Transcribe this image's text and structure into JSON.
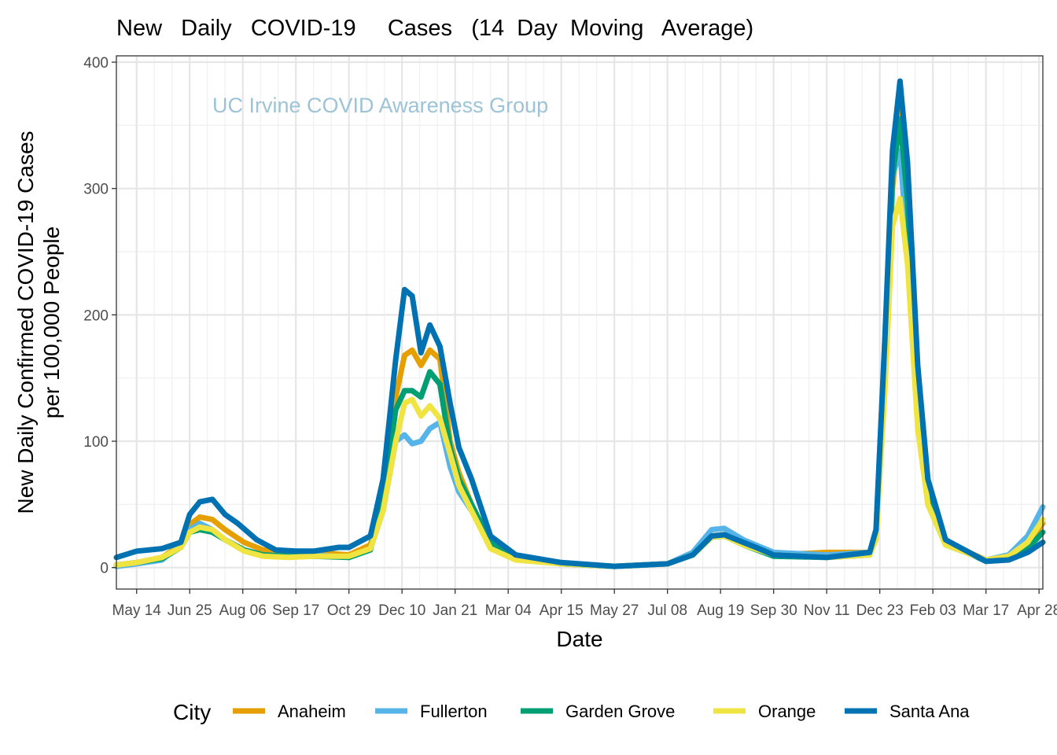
{
  "chart_data": {
    "type": "line",
    "title": "New   Daily   COVID-19     Cases   (14  Day  Moving   Average)",
    "watermark": "UC Irvine COVID Awareness Group",
    "watermark_color": "#9dc3d7",
    "xlabel": "Date",
    "ylabel_lines": [
      "New Daily Confirmed COVID-19 Cases",
      "per 100,000 People"
    ],
    "ylim": [
      -17,
      405
    ],
    "xlim": [
      -16,
      717
    ],
    "yticks": [
      0,
      100,
      200,
      300,
      400
    ],
    "xtick_labels": [
      "May 14",
      "Jun 25",
      "Aug 06",
      "Sep 17",
      "Oct 29",
      "Dec 10",
      "Jan 21",
      "Mar 04",
      "Apr 15",
      "May 27",
      "Jul 08",
      "Aug 19",
      "Sep 30",
      "Nov 11",
      "Dec 23",
      "Feb 03",
      "Mar 17",
      "Apr 28"
    ],
    "xtick_days": [
      0,
      42,
      84,
      126,
      168,
      210,
      252,
      294,
      336,
      378,
      420,
      462,
      504,
      546,
      588,
      630,
      672,
      714
    ],
    "x_unit": "days since May 14",
    "legend_title": "City",
    "grid": true,
    "series": [
      {
        "name": "Anaheim",
        "color": "#E69F00",
        "points": [
          [
            -16,
            2
          ],
          [
            0,
            4
          ],
          [
            20,
            8
          ],
          [
            35,
            18
          ],
          [
            42,
            34
          ],
          [
            50,
            40
          ],
          [
            60,
            38
          ],
          [
            70,
            30
          ],
          [
            85,
            20
          ],
          [
            100,
            14
          ],
          [
            120,
            10
          ],
          [
            140,
            12
          ],
          [
            168,
            10
          ],
          [
            185,
            18
          ],
          [
            195,
            60
          ],
          [
            205,
            135
          ],
          [
            212,
            168
          ],
          [
            218,
            172
          ],
          [
            225,
            160
          ],
          [
            232,
            172
          ],
          [
            240,
            165
          ],
          [
            248,
            100
          ],
          [
            255,
            75
          ],
          [
            265,
            50
          ],
          [
            280,
            20
          ],
          [
            300,
            8
          ],
          [
            336,
            3
          ],
          [
            378,
            1
          ],
          [
            420,
            3
          ],
          [
            440,
            10
          ],
          [
            455,
            25
          ],
          [
            465,
            26
          ],
          [
            480,
            20
          ],
          [
            504,
            10
          ],
          [
            546,
            12
          ],
          [
            580,
            12
          ],
          [
            585,
            25
          ],
          [
            592,
            150
          ],
          [
            598,
            300
          ],
          [
            604,
            360
          ],
          [
            610,
            300
          ],
          [
            618,
            150
          ],
          [
            626,
            60
          ],
          [
            640,
            20
          ],
          [
            672,
            6
          ],
          [
            690,
            8
          ],
          [
            705,
            20
          ],
          [
            717,
            35
          ]
        ]
      },
      {
        "name": "Fullerton",
        "color": "#56B4E9",
        "points": [
          [
            -16,
            1
          ],
          [
            0,
            3
          ],
          [
            20,
            6
          ],
          [
            35,
            18
          ],
          [
            42,
            30
          ],
          [
            50,
            35
          ],
          [
            60,
            30
          ],
          [
            70,
            22
          ],
          [
            85,
            14
          ],
          [
            100,
            10
          ],
          [
            120,
            9
          ],
          [
            140,
            10
          ],
          [
            168,
            8
          ],
          [
            185,
            15
          ],
          [
            195,
            45
          ],
          [
            205,
            100
          ],
          [
            212,
            105
          ],
          [
            218,
            98
          ],
          [
            225,
            100
          ],
          [
            232,
            110
          ],
          [
            240,
            115
          ],
          [
            248,
            80
          ],
          [
            255,
            60
          ],
          [
            265,
            45
          ],
          [
            280,
            18
          ],
          [
            300,
            7
          ],
          [
            336,
            3
          ],
          [
            378,
            1
          ],
          [
            420,
            3
          ],
          [
            440,
            12
          ],
          [
            455,
            30
          ],
          [
            465,
            31
          ],
          [
            480,
            22
          ],
          [
            504,
            12
          ],
          [
            546,
            10
          ],
          [
            580,
            12
          ],
          [
            585,
            30
          ],
          [
            592,
            180
          ],
          [
            598,
            310
          ],
          [
            604,
            330
          ],
          [
            610,
            250
          ],
          [
            618,
            120
          ],
          [
            626,
            50
          ],
          [
            640,
            18
          ],
          [
            672,
            6
          ],
          [
            690,
            10
          ],
          [
            705,
            25
          ],
          [
            717,
            48
          ]
        ]
      },
      {
        "name": "Garden Grove",
        "color": "#009E73",
        "points": [
          [
            -16,
            2
          ],
          [
            0,
            4
          ],
          [
            20,
            7
          ],
          [
            35,
            16
          ],
          [
            42,
            28
          ],
          [
            50,
            30
          ],
          [
            60,
            28
          ],
          [
            70,
            22
          ],
          [
            85,
            14
          ],
          [
            100,
            10
          ],
          [
            120,
            9
          ],
          [
            140,
            9
          ],
          [
            168,
            8
          ],
          [
            185,
            14
          ],
          [
            195,
            55
          ],
          [
            205,
            125
          ],
          [
            212,
            140
          ],
          [
            218,
            140
          ],
          [
            225,
            135
          ],
          [
            232,
            155
          ],
          [
            240,
            145
          ],
          [
            248,
            95
          ],
          [
            255,
            70
          ],
          [
            265,
            50
          ],
          [
            280,
            20
          ],
          [
            300,
            8
          ],
          [
            336,
            3
          ],
          [
            378,
            1
          ],
          [
            420,
            3
          ],
          [
            440,
            10
          ],
          [
            455,
            24
          ],
          [
            465,
            25
          ],
          [
            480,
            18
          ],
          [
            504,
            9
          ],
          [
            546,
            8
          ],
          [
            580,
            10
          ],
          [
            585,
            25
          ],
          [
            592,
            160
          ],
          [
            598,
            310
          ],
          [
            604,
            355
          ],
          [
            610,
            290
          ],
          [
            618,
            140
          ],
          [
            626,
            60
          ],
          [
            640,
            20
          ],
          [
            672,
            5
          ],
          [
            690,
            7
          ],
          [
            705,
            15
          ],
          [
            717,
            28
          ]
        ]
      },
      {
        "name": "Orange",
        "color": "#F0E442",
        "points": [
          [
            -16,
            2
          ],
          [
            0,
            4
          ],
          [
            20,
            8
          ],
          [
            35,
            16
          ],
          [
            42,
            28
          ],
          [
            50,
            32
          ],
          [
            60,
            30
          ],
          [
            70,
            22
          ],
          [
            85,
            13
          ],
          [
            100,
            9
          ],
          [
            120,
            8
          ],
          [
            140,
            9
          ],
          [
            168,
            9
          ],
          [
            185,
            15
          ],
          [
            195,
            45
          ],
          [
            205,
            100
          ],
          [
            212,
            130
          ],
          [
            218,
            133
          ],
          [
            225,
            120
          ],
          [
            232,
            128
          ],
          [
            240,
            118
          ],
          [
            248,
            90
          ],
          [
            255,
            65
          ],
          [
            265,
            45
          ],
          [
            280,
            15
          ],
          [
            300,
            6
          ],
          [
            336,
            3
          ],
          [
            378,
            1
          ],
          [
            420,
            3
          ],
          [
            440,
            10
          ],
          [
            455,
            24
          ],
          [
            465,
            25
          ],
          [
            480,
            18
          ],
          [
            504,
            10
          ],
          [
            546,
            8
          ],
          [
            580,
            10
          ],
          [
            585,
            22
          ],
          [
            592,
            140
          ],
          [
            598,
            270
          ],
          [
            604,
            292
          ],
          [
            610,
            240
          ],
          [
            618,
            110
          ],
          [
            626,
            50
          ],
          [
            640,
            18
          ],
          [
            672,
            6
          ],
          [
            690,
            9
          ],
          [
            705,
            20
          ],
          [
            717,
            38
          ]
        ]
      },
      {
        "name": "Santa Ana",
        "color": "#0072B2",
        "points": [
          [
            -16,
            8
          ],
          [
            0,
            13
          ],
          [
            20,
            15
          ],
          [
            35,
            20
          ],
          [
            42,
            42
          ],
          [
            50,
            52
          ],
          [
            60,
            54
          ],
          [
            70,
            42
          ],
          [
            80,
            35
          ],
          [
            95,
            22
          ],
          [
            110,
            14
          ],
          [
            126,
            13
          ],
          [
            140,
            13
          ],
          [
            160,
            16
          ],
          [
            168,
            16
          ],
          [
            185,
            25
          ],
          [
            195,
            70
          ],
          [
            205,
            165
          ],
          [
            212,
            220
          ],
          [
            218,
            215
          ],
          [
            225,
            170
          ],
          [
            232,
            192
          ],
          [
            240,
            175
          ],
          [
            248,
            130
          ],
          [
            255,
            95
          ],
          [
            265,
            70
          ],
          [
            280,
            25
          ],
          [
            300,
            10
          ],
          [
            336,
            4
          ],
          [
            378,
            1
          ],
          [
            420,
            3
          ],
          [
            440,
            10
          ],
          [
            455,
            25
          ],
          [
            465,
            26
          ],
          [
            480,
            20
          ],
          [
            490,
            16
          ],
          [
            504,
            10
          ],
          [
            546,
            8
          ],
          [
            580,
            12
          ],
          [
            585,
            30
          ],
          [
            592,
            180
          ],
          [
            598,
            330
          ],
          [
            604,
            385
          ],
          [
            610,
            320
          ],
          [
            618,
            160
          ],
          [
            626,
            70
          ],
          [
            640,
            22
          ],
          [
            672,
            5
          ],
          [
            690,
            6
          ],
          [
            705,
            12
          ],
          [
            717,
            20
          ]
        ]
      }
    ]
  }
}
